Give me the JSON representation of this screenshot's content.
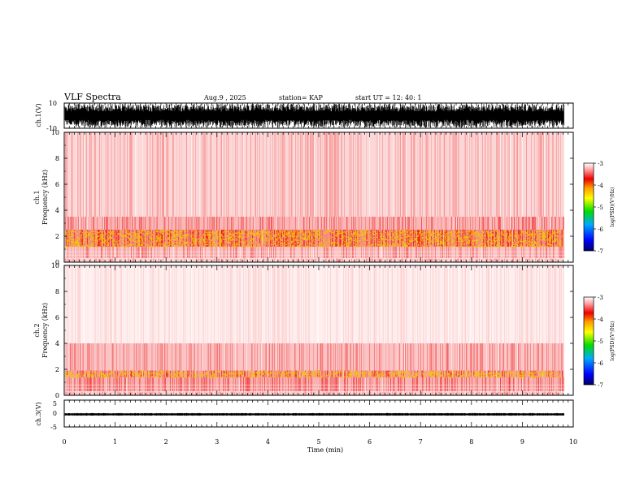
{
  "header": {
    "title": "VLF Spectra",
    "date": "Aug.9  , 2025",
    "station": "station= KAP",
    "start": "start  UT =    12: 40: 1"
  },
  "colors": {
    "spectrogram_low": "#ffffff",
    "spectrogram_mid": "#ee1111",
    "spectrogram_high": "#eecc00",
    "waveform": "#000000"
  },
  "chart_data": [
    {
      "type": "line",
      "name": "ch1-waveform",
      "ylabel": "ch.1(V)",
      "ylim": [
        -10,
        10
      ],
      "yticks": [
        "10",
        "-10"
      ],
      "description_values": "dense waveform saturating between -10 and 10 V"
    },
    {
      "type": "heatmap",
      "name": "ch1-spectrogram",
      "ylabel_line1": "ch.1",
      "ylabel_line2": "Frequency  (kHz)",
      "ylim": [
        0,
        10
      ],
      "yticks": [
        "0",
        "2",
        "4",
        "6",
        "8",
        "10"
      ],
      "bands": [
        {
          "from_khz": 0.0,
          "to_khz": 0.3,
          "level": 0.35
        },
        {
          "from_khz": 0.3,
          "to_khz": 1.2,
          "level": 0.45
        },
        {
          "from_khz": 1.2,
          "to_khz": 2.5,
          "level": 0.9
        },
        {
          "from_khz": 2.5,
          "to_khz": 3.5,
          "level": 0.55
        },
        {
          "from_khz": 3.5,
          "to_khz": 10.0,
          "level": 0.3
        }
      ],
      "colorbar": {
        "label": "log(PSD)(V²/Hz)",
        "ticks": [
          "-3",
          "-4",
          "-5",
          "-6",
          "-7"
        ],
        "range": [
          -7,
          -3
        ]
      }
    },
    {
      "type": "heatmap",
      "name": "ch2-spectrogram",
      "ylabel_line1": "ch.2",
      "ylabel_line2": "Frequency  (kHz)",
      "ylim": [
        0,
        10
      ],
      "yticks": [
        "0",
        "2",
        "4",
        "6",
        "8",
        "10"
      ],
      "bands": [
        {
          "from_khz": 0.0,
          "to_khz": 0.3,
          "level": 0.35
        },
        {
          "from_khz": 0.3,
          "to_khz": 1.4,
          "level": 0.6
        },
        {
          "from_khz": 1.4,
          "to_khz": 1.9,
          "level": 0.75
        },
        {
          "from_khz": 1.9,
          "to_khz": 4.0,
          "level": 0.45
        },
        {
          "from_khz": 4.0,
          "to_khz": 10.0,
          "level": 0.12
        }
      ],
      "colorbar": {
        "label": "log(PSD)(V²/Hz)",
        "ticks": [
          "-3",
          "-4",
          "-5",
          "-6",
          "-7"
        ],
        "range": [
          -7,
          -3
        ]
      }
    },
    {
      "type": "line",
      "name": "ch3-waveform",
      "ylabel": "ch.3(V)",
      "ylim": [
        -5,
        5
      ],
      "yticks": [
        "5",
        "0",
        "-5"
      ],
      "baseline_v": -0.3,
      "amplitude_v": 0.5
    }
  ],
  "xaxis": {
    "label": "Time  (min)",
    "range": [
      0,
      10
    ],
    "ticks": [
      "0",
      "1",
      "2",
      "3",
      "4",
      "5",
      "6",
      "7",
      "8",
      "9",
      "10"
    ],
    "data_end_min": 9.82
  }
}
